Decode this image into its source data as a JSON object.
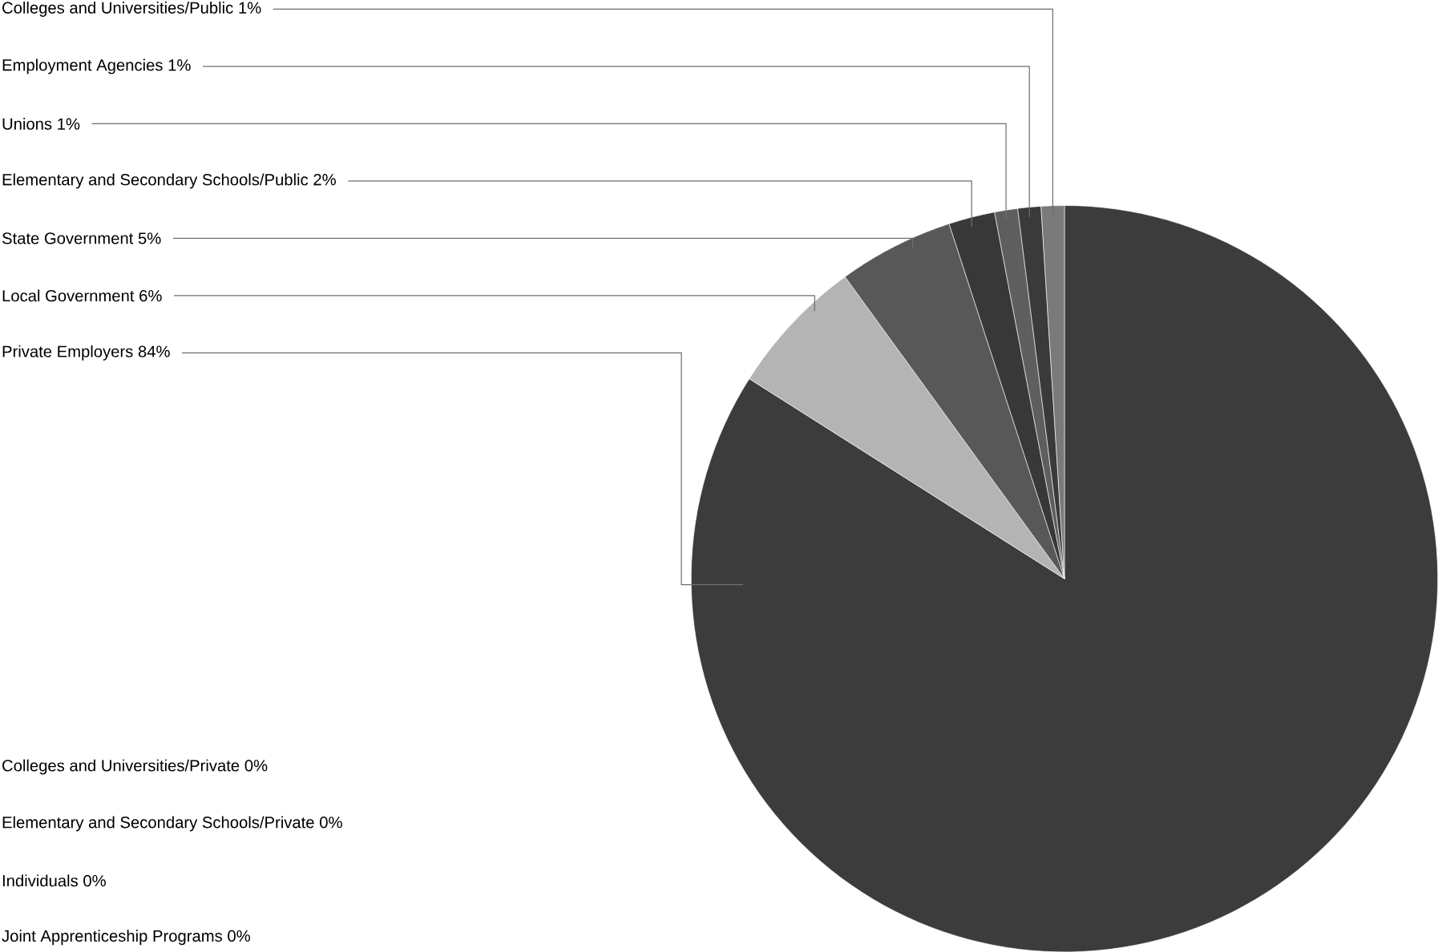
{
  "chart_data": {
    "type": "pie",
    "categories": [
      "Private Employers",
      "Local Government",
      "State Government",
      "Elementary and Secondary Schools/Public",
      "Unions",
      "Employment Agencies",
      "Colleges and Universities/Public",
      "Colleges and Universities/Private",
      "Elementary and Secondary Schools/Private",
      "Individuals",
      "Joint Apprenticeship Programs"
    ],
    "values": [
      84,
      6,
      5,
      2,
      1,
      1,
      1,
      0,
      0,
      0,
      0
    ],
    "value_labels": [
      "84%",
      "6%",
      "5%",
      "2%",
      "1%",
      "1%",
      "1%",
      "0%",
      "0%",
      "0%",
      "0%"
    ],
    "colors": [
      "#3c3c3c",
      "#b4b4b4",
      "#585858",
      "#383838",
      "#5e5e5e",
      "#3a3a3a",
      "#7a7a7a",
      "#888888",
      "#888888",
      "#888888",
      "#888888"
    ]
  }
}
